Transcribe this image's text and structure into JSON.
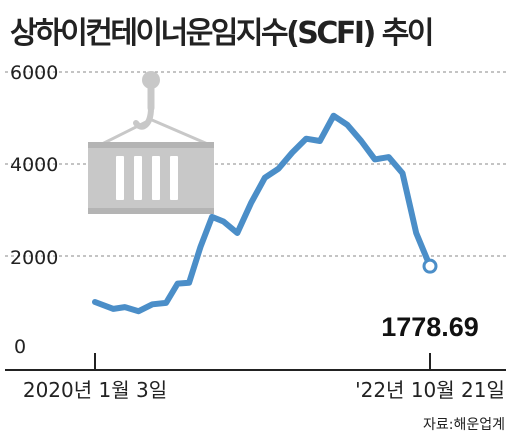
{
  "chart_data": {
    "type": "line",
    "title": "상하이컨테이너운임지수(SCFI) 추이",
    "source": "자료:해운업계",
    "xlabel": "",
    "ylabel": "",
    "ylim": [
      0,
      6000
    ],
    "yticks": [
      "0",
      "2000",
      "4000",
      "6000"
    ],
    "grid": "horizontal dashed",
    "x_start_label": "2020년 1월 3일",
    "x_end_label": "'22년 10월 21일",
    "x": [
      "2020-01-03",
      "2020-02-28",
      "2020-04-03",
      "2020-05-15",
      "2020-06-26",
      "2020-08-07",
      "2020-09-11",
      "2020-10-16",
      "2020-11-20",
      "2020-12-25",
      "2021-01-29",
      "2021-03-12",
      "2021-04-23",
      "2021-06-04",
      "2021-07-16",
      "2021-08-27",
      "2021-10-08",
      "2021-11-19",
      "2021-12-31",
      "2022-02-11",
      "2022-03-25",
      "2022-05-06",
      "2022-06-17",
      "2022-07-29",
      "2022-09-09",
      "2022-10-21"
    ],
    "series": [
      {
        "values": [
          1000,
          850,
          890,
          800,
          950,
          980,
          1400,
          1420,
          2200,
          2850,
          2750,
          2500,
          3150,
          3700,
          3900,
          4250,
          4550,
          4500,
          5050,
          4850,
          4500,
          4100,
          4150,
          3800,
          2500,
          1778.69
        ]
      }
    ],
    "annotation": "1778.69",
    "colors": {
      "line": "#4b8ec8",
      "grid": "#888888",
      "icon": "#c8c8c8"
    }
  },
  "icons": [
    "crane-hook-icon",
    "shipping-container-icon"
  ]
}
